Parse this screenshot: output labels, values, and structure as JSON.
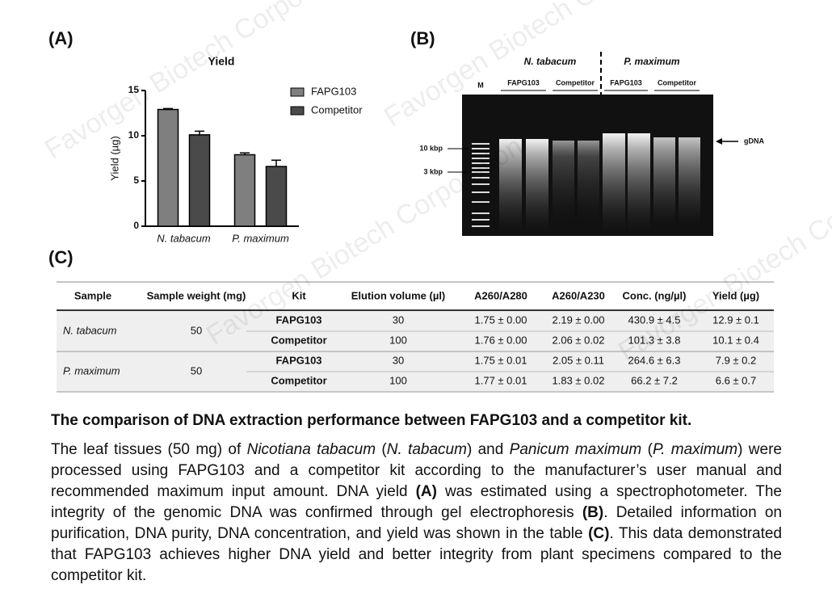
{
  "panels": {
    "a": "(A)",
    "b": "(B)",
    "c": "(C)"
  },
  "watermark": "Favorgen Biotech Corporation",
  "chart_data": {
    "type": "bar",
    "title": "Yield",
    "y_label": "Yield (µg)",
    "categories": [
      "N. tabacum",
      "P. maximum"
    ],
    "series": [
      {
        "name": "FAPG103",
        "color": "#7f7f7f",
        "values": [
          12.9,
          7.9
        ],
        "errors": [
          0.1,
          0.2
        ]
      },
      {
        "name": "Competitor",
        "color": "#4a4a4a",
        "values": [
          10.1,
          6.6
        ],
        "errors": [
          0.4,
          0.7
        ]
      }
    ],
    "ylim": [
      0,
      15
    ],
    "yticks": [
      0,
      5,
      10,
      15
    ],
    "legend": "upper right"
  },
  "gel": {
    "groups": [
      "N. tabacum",
      "P. maximum"
    ],
    "marker": "M",
    "lanes": [
      "FAPG103",
      "Competitor",
      "FAPG103",
      "Competitor"
    ],
    "sizes": [
      "10 kbp",
      "3 kbp"
    ],
    "band": "gDNA"
  },
  "table": {
    "header": [
      "Sample",
      "Sample weight (mg)",
      "Kit",
      "Elution volume (µl)",
      "A260/A280",
      "A260/A230",
      "Conc. (ng/µl)",
      "Yield (µg)"
    ],
    "groups": [
      {
        "sample": "N. tabacum",
        "weight": 50,
        "rows": [
          [
            "FAPG103",
            30,
            "1.75 ± 0.00",
            "2.19 ± 0.00",
            "430.9 ± 4.5",
            "12.9 ± 0.1"
          ],
          [
            "Competitor",
            100,
            "1.76 ± 0.00",
            "2.06 ± 0.02",
            "101.3 ± 3.8",
            "10.1 ± 0.4"
          ]
        ]
      },
      {
        "sample": "P. maximum",
        "weight": 50,
        "rows": [
          [
            "FAPG103",
            30,
            "1.75 ± 0.01",
            "2.05 ± 0.11",
            "264.6 ± 6.3",
            "7.9 ± 0.2"
          ],
          [
            "Competitor",
            100,
            "1.77 ± 0.01",
            "1.83 ± 0.02",
            "66.2 ± 7.2",
            "6.6 ± 0.7"
          ]
        ]
      }
    ]
  },
  "caption": {
    "heading": "The comparison of DNA extraction performance between FAPG103 and a competitor kit.",
    "body": [
      "The leaf tissues (50 mg) of ",
      "Nicotiana tabacum",
      " (",
      "N. tabacum",
      ") and ",
      "Panicum maximum",
      " (",
      "P. maximum",
      ") were processed using FAPG103 and a competitor kit according to the manufacturer’s user manual and recommended maximum input amount. DNA yield ",
      "(A)",
      " was estimated using a spectrophotometer. The integrity of the genomic DNA was confirmed through gel electrophoresis ",
      "(B)",
      ". Detailed information on purification, DNA purity, DNA concentration, and yield was shown in the table ",
      "(C)",
      ". This data demonstrated that FAPG103 achieves higher DNA yield and better integrity from plant specimens compared to the competitor kit."
    ]
  }
}
